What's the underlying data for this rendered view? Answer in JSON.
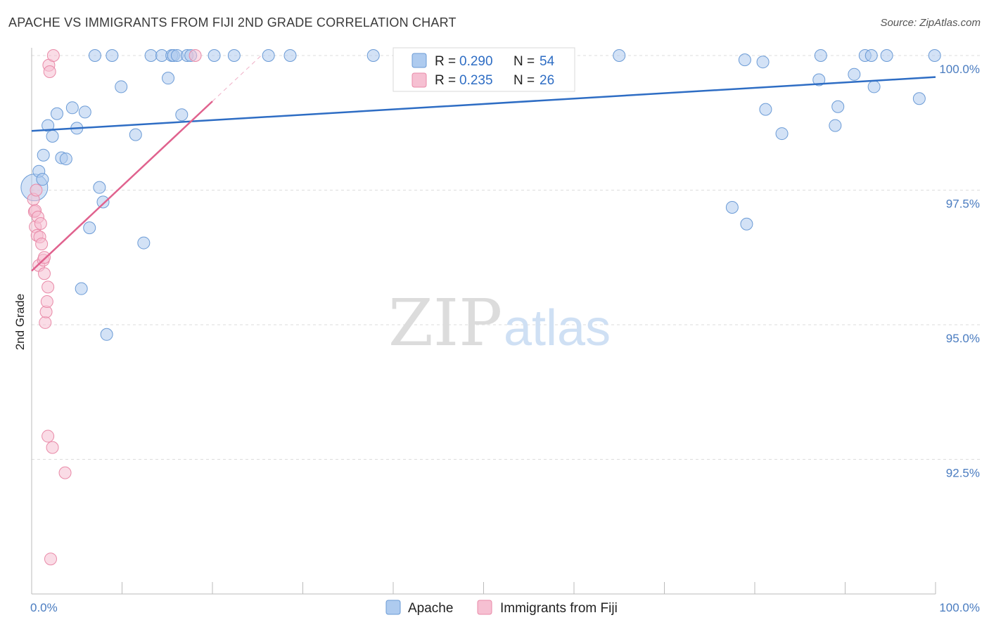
{
  "header": {
    "title": "APACHE VS IMMIGRANTS FROM FIJI 2ND GRADE CORRELATION CHART",
    "source": "Source: ZipAtlas.com"
  },
  "watermark": {
    "zip": "ZIP",
    "atlas": "atlas"
  },
  "legend": {
    "series": [
      {
        "r_label": "R =",
        "r_value": "0.290",
        "n_label": "N =",
        "n_value": "54"
      },
      {
        "r_label": "R =",
        "r_value": "0.235",
        "n_label": "N =",
        "n_value": "26"
      }
    ]
  },
  "bottom_legend": {
    "apache": "Apache",
    "fiji": "Immigrants from Fiji"
  },
  "colors": {
    "apache_fill": "#aecbef",
    "apache_stroke": "#6b9bd6",
    "apache_line": "#2e6dc4",
    "fiji_fill": "#f6c0d2",
    "fiji_stroke": "#e98aa8",
    "fiji_line": "#e0628e",
    "grid": "#dddddd",
    "tick_label": "#4a7cc0"
  },
  "chart_data": {
    "type": "scatter",
    "title": "APACHE VS IMMIGRANTS FROM FIJI 2ND GRADE CORRELATION CHART",
    "xlabel": "",
    "ylabel": "2nd Grade",
    "xlim": [
      0,
      100
    ],
    "ylim": [
      90.25,
      100.2
    ],
    "x_tick_labels": [
      "0.0%",
      "100.0%"
    ],
    "y_ticks": [
      100.0,
      97.5,
      95.0,
      92.5
    ],
    "y_tick_labels": [
      "100.0%",
      "97.5%",
      "95.0%",
      "92.5%"
    ],
    "grid": true,
    "legend_position": "top-center",
    "series": [
      {
        "name": "Apache",
        "R": 0.29,
        "N": 54,
        "trend": {
          "x": [
            0,
            100
          ],
          "y": [
            98.6,
            99.6
          ]
        },
        "points": [
          {
            "x": 0.3,
            "y": 97.55,
            "big": true
          },
          {
            "x": 0.8,
            "y": 97.85
          },
          {
            "x": 1.3,
            "y": 98.15
          },
          {
            "x": 1.8,
            "y": 98.7
          },
          {
            "x": 2.3,
            "y": 98.5
          },
          {
            "x": 2.8,
            "y": 98.92
          },
          {
            "x": 3.3,
            "y": 98.1
          },
          {
            "x": 3.8,
            "y": 98.08
          },
          {
            "x": 4.5,
            "y": 99.03
          },
          {
            "x": 5.0,
            "y": 98.65
          },
          {
            "x": 5.5,
            "y": 95.67
          },
          {
            "x": 5.9,
            "y": 98.95
          },
          {
            "x": 6.4,
            "y": 96.8
          },
          {
            "x": 7.0,
            "y": 100.0
          },
          {
            "x": 7.5,
            "y": 97.55
          },
          {
            "x": 7.9,
            "y": 97.28
          },
          {
            "x": 8.3,
            "y": 94.82
          },
          {
            "x": 8.9,
            "y": 100.0
          },
          {
            "x": 9.9,
            "y": 99.42
          },
          {
            "x": 11.5,
            "y": 98.53
          },
          {
            "x": 12.4,
            "y": 96.52
          },
          {
            "x": 13.2,
            "y": 100.0
          },
          {
            "x": 14.4,
            "y": 100.0
          },
          {
            "x": 15.1,
            "y": 99.58
          },
          {
            "x": 15.5,
            "y": 100.0
          },
          {
            "x": 15.7,
            "y": 100.0
          },
          {
            "x": 16.1,
            "y": 100.0
          },
          {
            "x": 16.6,
            "y": 98.9
          },
          {
            "x": 17.2,
            "y": 100.0
          },
          {
            "x": 17.6,
            "y": 100.0
          },
          {
            "x": 20.2,
            "y": 100.0
          },
          {
            "x": 22.4,
            "y": 100.0
          },
          {
            "x": 26.2,
            "y": 100.0
          },
          {
            "x": 28.6,
            "y": 100.0
          },
          {
            "x": 37.8,
            "y": 100.0
          },
          {
            "x": 65.0,
            "y": 100.0
          },
          {
            "x": 77.5,
            "y": 97.18
          },
          {
            "x": 79.1,
            "y": 96.87
          },
          {
            "x": 78.9,
            "y": 99.92
          },
          {
            "x": 80.9,
            "y": 99.88
          },
          {
            "x": 81.2,
            "y": 99.0
          },
          {
            "x": 83.0,
            "y": 98.55
          },
          {
            "x": 87.1,
            "y": 99.55
          },
          {
            "x": 87.3,
            "y": 100.0
          },
          {
            "x": 88.9,
            "y": 98.7
          },
          {
            "x": 89.2,
            "y": 99.05
          },
          {
            "x": 91.0,
            "y": 99.65
          },
          {
            "x": 92.2,
            "y": 100.0
          },
          {
            "x": 92.9,
            "y": 100.0
          },
          {
            "x": 93.2,
            "y": 99.42
          },
          {
            "x": 94.6,
            "y": 100.0
          },
          {
            "x": 98.2,
            "y": 99.2
          },
          {
            "x": 99.9,
            "y": 100.0
          },
          {
            "x": 1.2,
            "y": 97.7
          }
        ]
      },
      {
        "name": "Immigrants from Fiji",
        "R": 0.235,
        "N": 26,
        "trend": {
          "x": [
            0,
            20
          ],
          "y": [
            96.0,
            99.15
          ]
        },
        "points": [
          {
            "x": 0.2,
            "y": 97.33
          },
          {
            "x": 0.3,
            "y": 97.1
          },
          {
            "x": 0.4,
            "y": 96.82
          },
          {
            "x": 0.5,
            "y": 97.5
          },
          {
            "x": 0.4,
            "y": 97.12
          },
          {
            "x": 0.6,
            "y": 96.66
          },
          {
            "x": 0.7,
            "y": 97.0
          },
          {
            "x": 0.8,
            "y": 96.1
          },
          {
            "x": 0.9,
            "y": 96.63
          },
          {
            "x": 1.0,
            "y": 96.88
          },
          {
            "x": 1.1,
            "y": 96.5
          },
          {
            "x": 1.3,
            "y": 96.2
          },
          {
            "x": 1.4,
            "y": 96.25
          },
          {
            "x": 1.4,
            "y": 95.95
          },
          {
            "x": 1.5,
            "y": 95.04
          },
          {
            "x": 1.6,
            "y": 95.24
          },
          {
            "x": 1.7,
            "y": 95.43
          },
          {
            "x": 1.8,
            "y": 95.7
          },
          {
            "x": 1.8,
            "y": 92.93
          },
          {
            "x": 1.9,
            "y": 99.82
          },
          {
            "x": 2.0,
            "y": 99.7
          },
          {
            "x": 2.1,
            "y": 90.65
          },
          {
            "x": 2.3,
            "y": 92.72
          },
          {
            "x": 2.4,
            "y": 100.0
          },
          {
            "x": 3.7,
            "y": 92.25
          },
          {
            "x": 18.1,
            "y": 100.0
          }
        ]
      }
    ]
  }
}
